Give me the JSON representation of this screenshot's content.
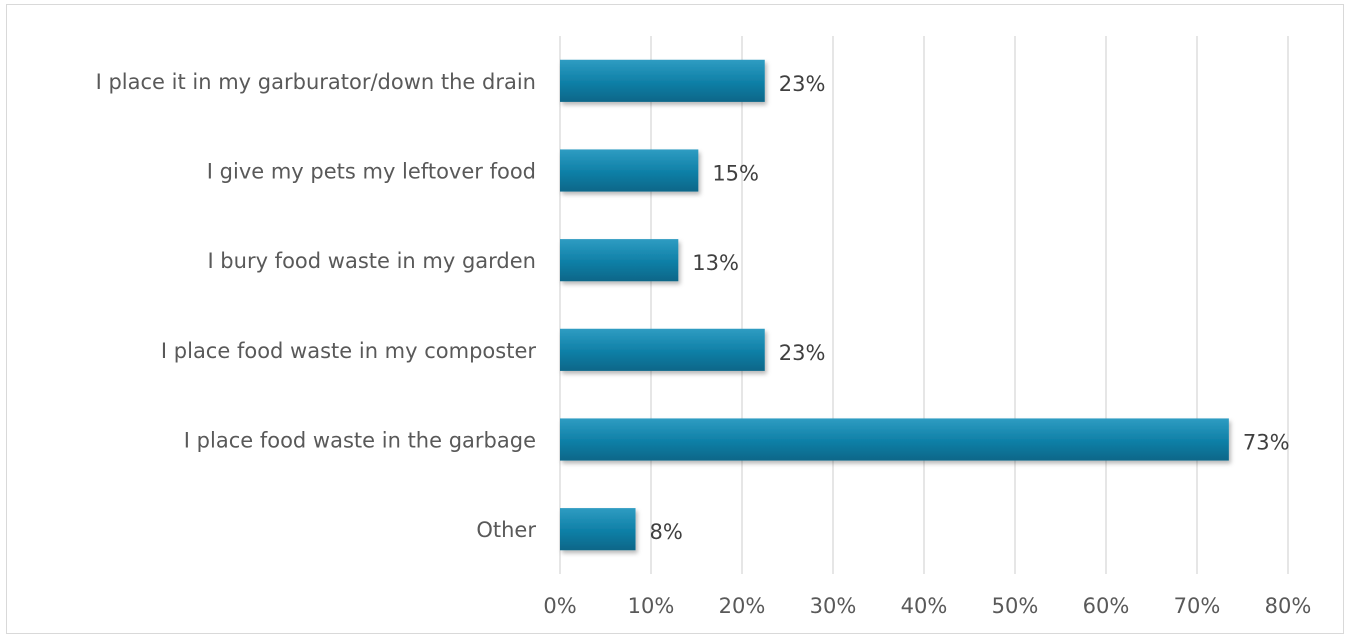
{
  "chart_data": {
    "type": "bar",
    "orientation": "horizontal",
    "categories": [
      "I place it in my garburator/down the drain",
      "I give my pets my leftover food",
      "I bury food waste in my garden",
      "I place food waste in my composter",
      "I place food waste in the garbage",
      "Other"
    ],
    "values": [
      22.5,
      15.2,
      13.0,
      22.5,
      73.5,
      8.3
    ],
    "data_labels": [
      "23%",
      "15%",
      "13%",
      "23%",
      "73%",
      "8%"
    ],
    "x_ticks": [
      "0%",
      "10%",
      "20%",
      "30%",
      "40%",
      "50%",
      "60%",
      "70%",
      "80%"
    ],
    "xlim": [
      0,
      80
    ],
    "grid": "vertical",
    "legend": "none",
    "title": "",
    "xlabel": "",
    "ylabel": "",
    "bar_color": "#0e7fa6",
    "bar_color_light": "#2f9cc2",
    "bar_color_dark": "#0a6688"
  }
}
